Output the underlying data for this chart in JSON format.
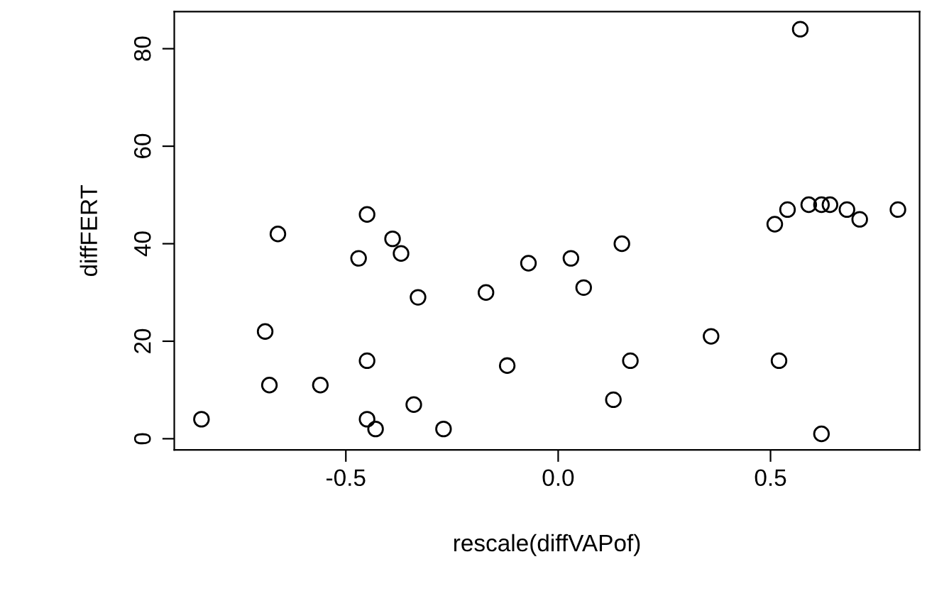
{
  "chart_data": {
    "type": "scatter",
    "xlabel": "rescale(diffVAPof)",
    "ylabel": "diffFERT",
    "x": [
      -0.84,
      -0.66,
      -0.69,
      -0.68,
      -0.56,
      -0.45,
      -0.47,
      -0.39,
      -0.37,
      -0.33,
      -0.45,
      -0.45,
      -0.43,
      -0.34,
      -0.27,
      -0.17,
      -0.12,
      -0.07,
      0.03,
      0.06,
      0.15,
      0.13,
      0.17,
      0.36,
      0.51,
      0.52,
      0.54,
      0.57,
      0.59,
      0.62,
      0.64,
      0.62,
      0.68,
      0.71,
      0.8
    ],
    "series": [
      {
        "color": "#000000",
        "values": [
          4,
          42,
          22,
          11,
          11,
          46,
          37,
          41,
          38,
          29,
          16,
          4,
          2,
          7,
          2,
          30,
          15,
          36,
          37,
          31,
          40,
          8,
          16,
          21,
          44,
          16,
          47,
          84,
          48,
          48,
          48,
          1,
          47,
          45,
          47
        ]
      }
    ],
    "marker": "circle",
    "grid": false,
    "xlim": [
      -0.904,
      0.851
    ],
    "ylim": [
      -2.3,
      87.6
    ],
    "xticks": [
      -0.5,
      {
        "value": 0,
        "label": "0.0"
      },
      0.5
    ],
    "yticks": [
      0,
      20,
      40,
      60,
      80
    ]
  }
}
